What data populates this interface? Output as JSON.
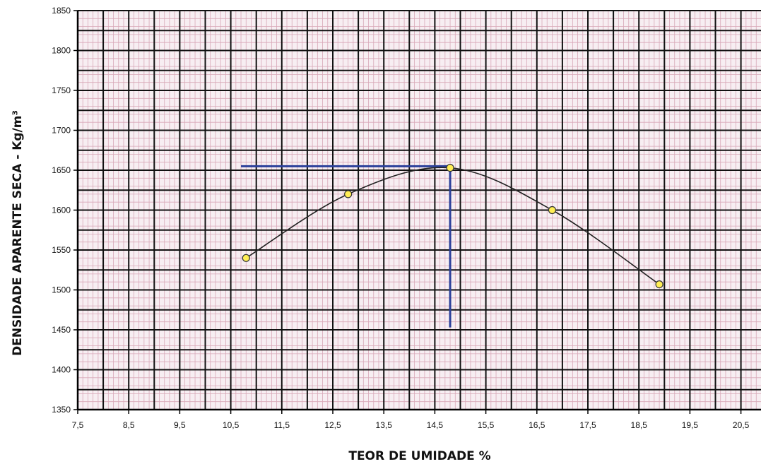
{
  "chart_data": {
    "type": "scatter",
    "title": "",
    "xlabel": "TEOR DE UMIDADE %",
    "ylabel": "DENSIDADE APARENTE SECA - Kg/m³",
    "xlim": [
      7.5,
      21.0
    ],
    "ylim": [
      1350,
      1850
    ],
    "xticks": [
      "7,5",
      "8,5",
      "9,5",
      "10,5",
      "11,5",
      "12,5",
      "13,5",
      "14,5",
      "15,5",
      "16,5",
      "17,5",
      "18,5",
      "19,5",
      "20,5"
    ],
    "xtick_values": [
      7.5,
      8.5,
      9.5,
      10.5,
      11.5,
      12.5,
      13.5,
      14.5,
      15.5,
      16.5,
      17.5,
      18.5,
      19.5,
      20.5
    ],
    "yticks": [
      "1350",
      "1400",
      "1450",
      "1500",
      "1550",
      "1600",
      "1650",
      "1700",
      "1750",
      "1800",
      "1850"
    ],
    "ytick_values": [
      1350,
      1400,
      1450,
      1500,
      1550,
      1600,
      1650,
      1700,
      1750,
      1800,
      1850
    ],
    "grid": true,
    "series": [
      {
        "points": [
          {
            "x": 10.8,
            "y": 1540
          },
          {
            "x": 12.8,
            "y": 1620
          },
          {
            "x": 14.8,
            "y": 1653
          },
          {
            "x": 16.8,
            "y": 1600
          },
          {
            "x": 18.9,
            "y": 1507
          }
        ],
        "line_color": "#222222",
        "marker_color": "#ffee55"
      }
    ],
    "reference_lines": {
      "color": "#2b3f9a",
      "horizontal": {
        "y": 1655,
        "x_from": 10.7,
        "x_to": 14.8
      },
      "vertical": {
        "x": 14.8,
        "y_from": 1653,
        "y_to": 1453
      }
    },
    "colors": {
      "fine_grid": "#d8a8b8",
      "major_grid": "#111111",
      "plot_background": "#f7eef2"
    }
  }
}
